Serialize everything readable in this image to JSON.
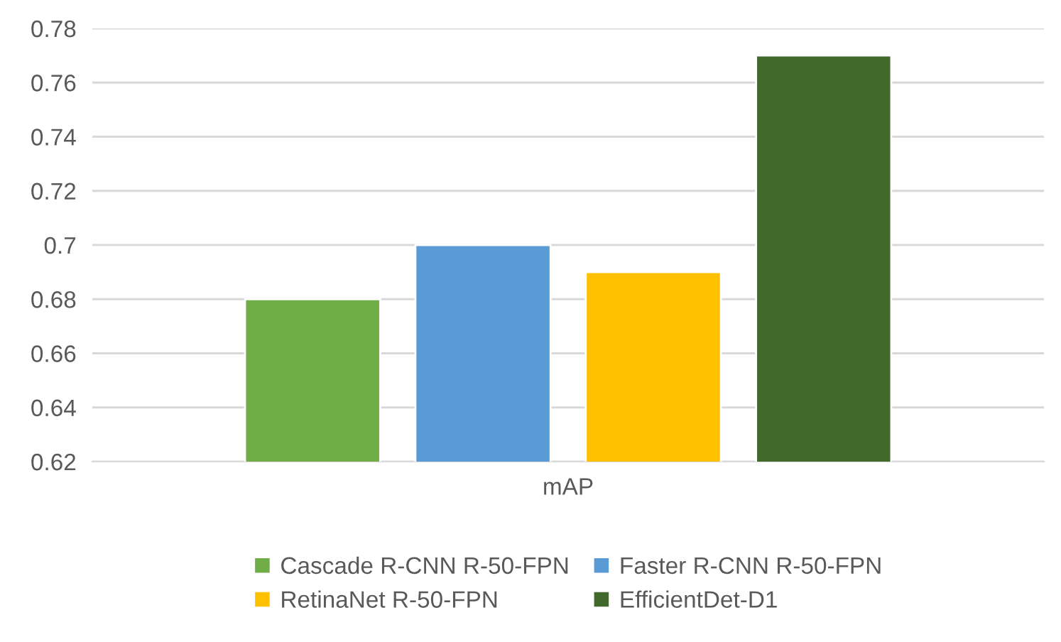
{
  "chart_data": {
    "type": "bar",
    "categories": [
      "mAP"
    ],
    "series": [
      {
        "name": "Cascade R-CNN R-50-FPN",
        "color": "#70ad47",
        "values": [
          0.68
        ]
      },
      {
        "name": "Faster R-CNN R-50-FPN",
        "color": "#5b9bd5",
        "values": [
          0.7
        ]
      },
      {
        "name": "RetinaNet R-50-FPN",
        "color": "#ffc000",
        "values": [
          0.69
        ]
      },
      {
        "name": "EfficientDet-D1",
        "color": "#43682b",
        "values": [
          0.77
        ]
      }
    ],
    "ylim": [
      0.62,
      0.78
    ],
    "yticks": [
      0.62,
      0.64,
      0.66,
      0.68,
      0.7,
      0.72,
      0.74,
      0.76,
      0.78
    ],
    "grid": "y",
    "legend": "bottom"
  }
}
